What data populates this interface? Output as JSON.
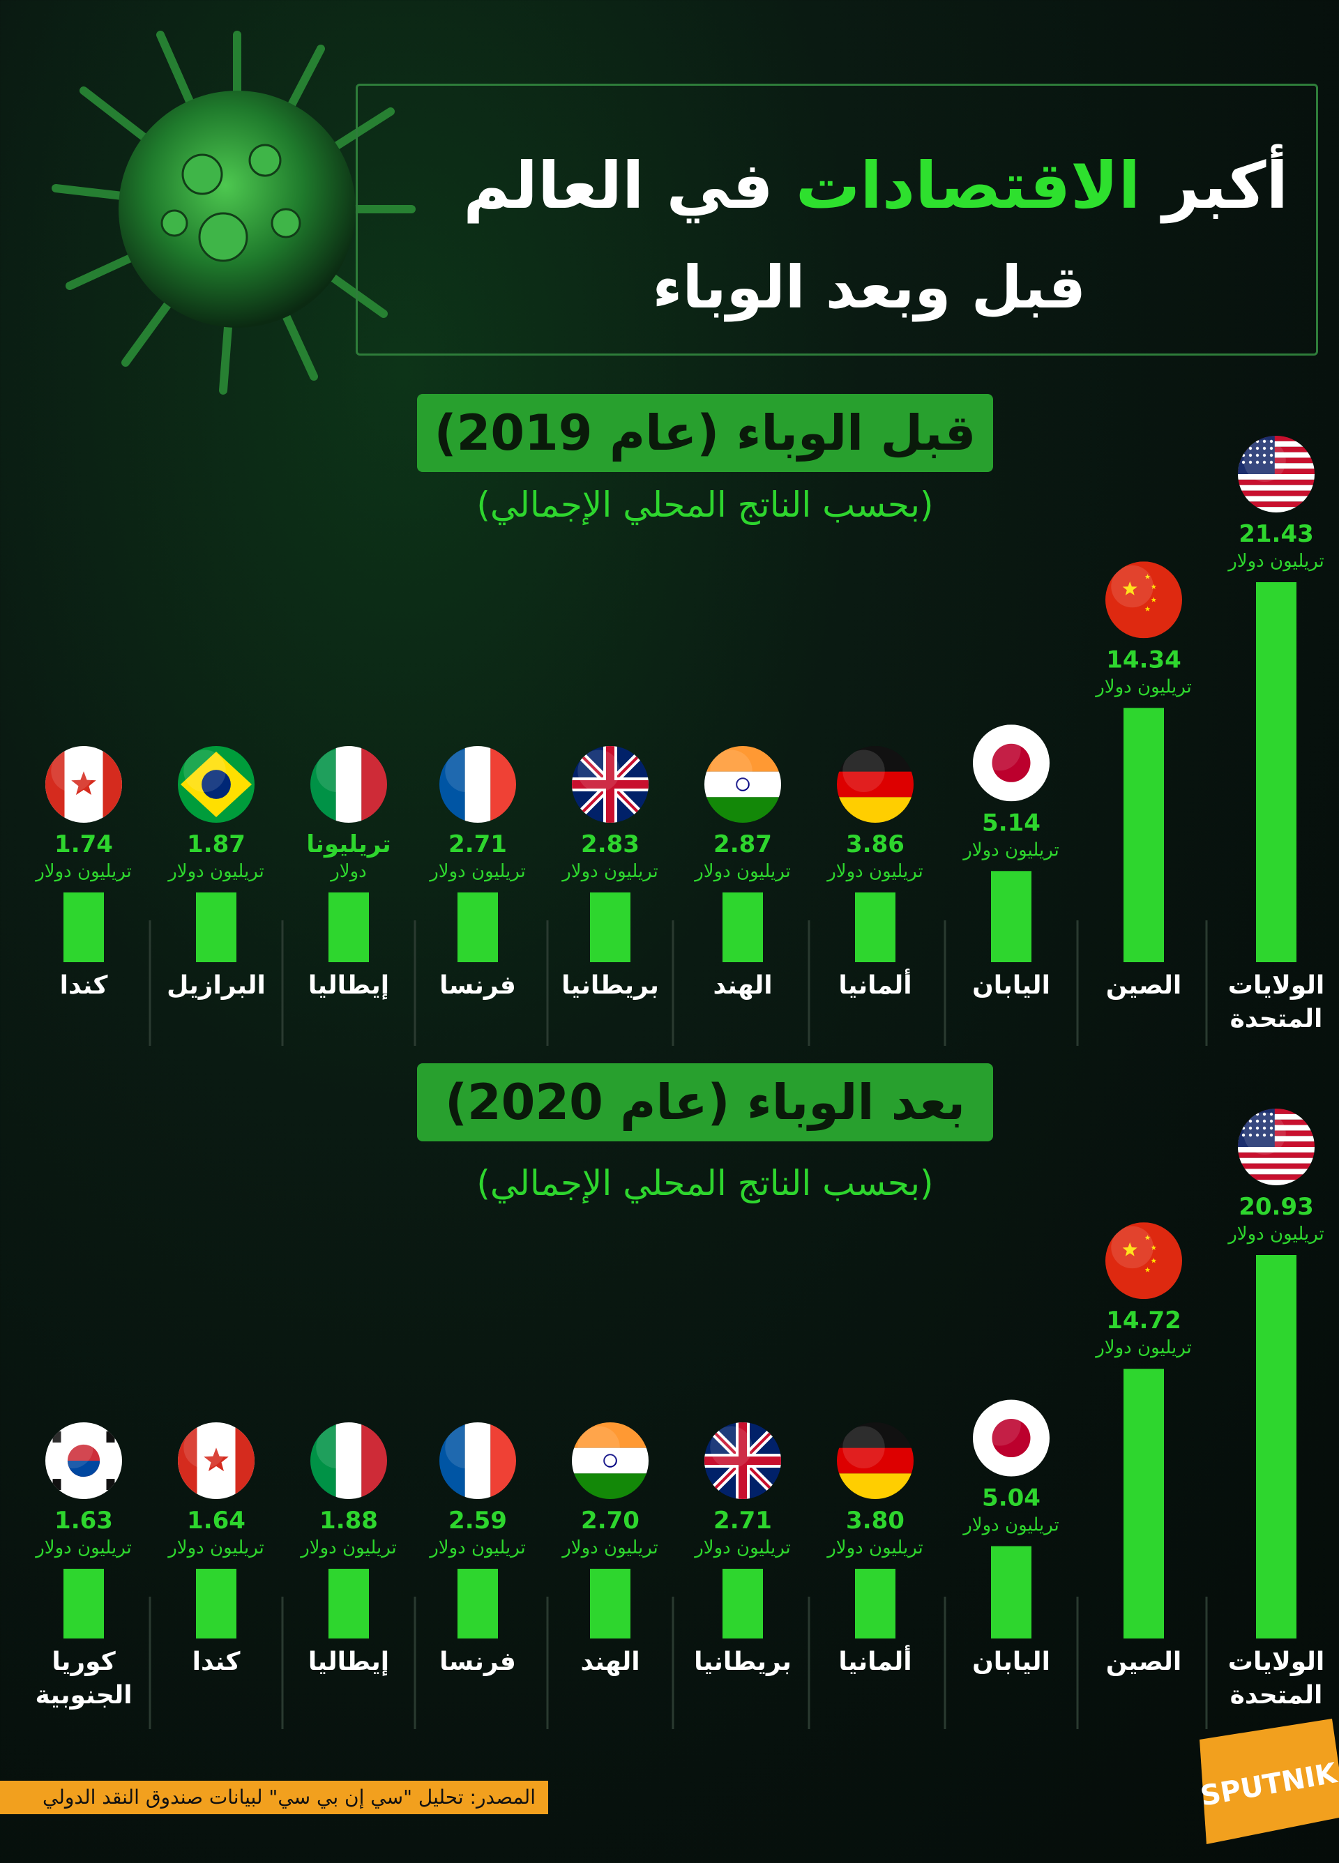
{
  "header": {
    "title_part1": "أكبر",
    "title_accent": "الاقتصادات",
    "title_part2": "في العالم",
    "subtitle": "قبل وبعد الوباء"
  },
  "sections": [
    {
      "title": "قبل الوباء (عام 2019)",
      "subtitle": "(بحسب الناتج المحلي الإجمالي)"
    },
    {
      "title": "بعد الوباء (عام 2020)",
      "subtitle": "(بحسب الناتج المحلي الإجمالي)"
    }
  ],
  "chart_data": [
    {
      "type": "bar",
      "categories": [
        "الولايات المتحدة",
        "الصين",
        "اليابان",
        "ألمانيا",
        "الهند",
        "بريطانيا",
        "فرنسا",
        "إيطاليا",
        "البرازيل",
        "كندا"
      ],
      "values": [
        21.43,
        14.34,
        5.14,
        3.86,
        2.87,
        2.83,
        2.71,
        2.0,
        1.87,
        1.74
      ],
      "value_labels": [
        "21.43",
        "14.34",
        "5.14",
        "3.86",
        "2.87",
        "2.83",
        "2.71",
        "تريليونا",
        "1.87",
        "1.74"
      ],
      "unit_labels": [
        "تريليون دولار",
        "تريليون دولار",
        "تريليون دولار",
        "تريليون دولار",
        "تريليون دولار",
        "تريليون دولار",
        "تريليون دولار",
        "دولار",
        "تريليون دولار",
        "تريليون دولار"
      ],
      "flags": [
        "us",
        "cn",
        "jp",
        "de",
        "in",
        "gb",
        "fr",
        "it",
        "br",
        "ca"
      ]
    },
    {
      "type": "bar",
      "categories": [
        "الولايات المتحدة",
        "الصين",
        "اليابان",
        "ألمانيا",
        "بريطانيا",
        "الهند",
        "فرنسا",
        "إيطاليا",
        "كندا",
        "كوريا الجنوبية"
      ],
      "values": [
        20.93,
        14.72,
        5.04,
        3.8,
        2.71,
        2.7,
        2.59,
        1.88,
        1.64,
        1.63
      ],
      "value_labels": [
        "20.93",
        "14.72",
        "5.04",
        "3.80",
        "2.71",
        "2.70",
        "2.59",
        "1.88",
        "1.64",
        "1.63"
      ],
      "unit_labels": [
        "تريليون دولار",
        "تريليون دولار",
        "تريليون دولار",
        "تريليون دولار",
        "تريليون دولار",
        "تريليون دولار",
        "تريليون دولار",
        "تريليون دولار",
        "تريليون دولار",
        "تريليون دولار"
      ],
      "flags": [
        "us",
        "cn",
        "jp",
        "de",
        "gb",
        "in",
        "fr",
        "it",
        "ca",
        "kr"
      ]
    }
  ],
  "footer": {
    "source": "المصدر: تحليل \"سي إن بي سي\" لبيانات صندوق النقد الدولي",
    "logo": "SPUTNIK"
  }
}
